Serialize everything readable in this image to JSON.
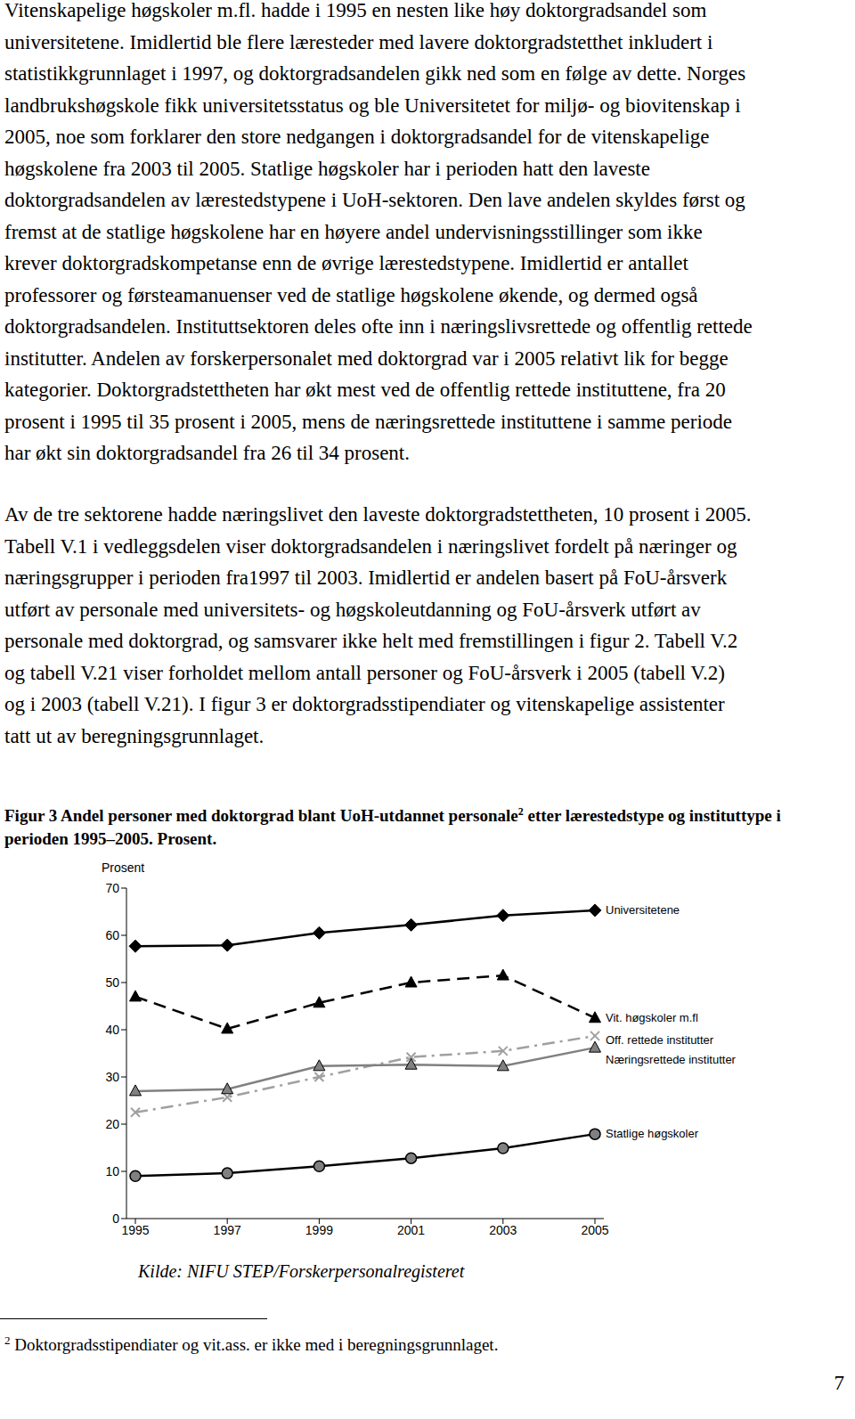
{
  "paragraphs": [
    [
      "Vitenskapelige høgskoler m.fl. hadde i 1995 en nesten like høy doktorgradsandel som",
      "universitetene. Imidlertid ble flere læresteder med lavere doktorgradstetthet inkludert i",
      "statistikkgrunnlaget i 1997, og doktorgradsandelen gikk ned som en følge av dette. Norges",
      "landbrukshøgskole fikk universitetsstatus og ble Universitetet for miljø- og biovitenskap i",
      "2005, noe som forklarer den store nedgangen i doktorgradsandel for de vitenskapelige",
      "høgskolene fra 2003 til 2005. Statlige høgskoler har i perioden hatt den laveste",
      "doktorgradsandelen av lærestedstypene i UoH-sektoren. Den lave andelen skyldes først og",
      "fremst at de statlige høgskolene har en høyere andel undervisningsstillinger som ikke",
      "krever doktorgradskompetanse enn de øvrige lærestedstypene. Imidlertid er antallet",
      "professorer og førsteamanuenser ved de statlige høgskolene økende, og dermed også",
      "doktorgradsandelen. Instituttsektoren deles ofte inn i næringslivsrettede og offentlig rettede",
      "institutter. Andelen av forskerpersonalet med doktorgrad var i 2005 relativt lik for begge",
      "kategorier. Doktorgradstettheten har økt mest ved de offentlig rettede instituttene, fra 20",
      "prosent i 1995 til 35 prosent i 2005, mens de næringsrettede instituttene i samme periode",
      "har økt sin doktorgradsandel fra 26 til 34 prosent."
    ],
    [
      "Av de tre sektorene hadde næringslivet den laveste doktorgradstettheten, 10 prosent i 2005.",
      "Tabell V.1 i vedleggsdelen viser doktorgradsandelen i næringslivet fordelt på næringer og",
      "næringsgrupper i perioden fra1997 til 2003. Imidlertid er andelen basert på FoU-årsverk",
      "utført av personale med universitets- og høgskoleutdanning og FoU-årsverk utført av",
      "personale med doktorgrad, og samsvarer ikke helt med fremstillingen i figur 2. Tabell V.2",
      "og tabell V.21 viser forholdet mellom antall personer og FoU-årsverk i 2005 (tabell V.2)",
      "og i 2003 (tabell V.21). I figur 3 er doktorgradsstipendiater og vitenskapelige assistenter",
      "tatt ut av beregningsgrunnlaget."
    ]
  ],
  "figure": {
    "title": "Figur 3 Andel personer med doktorgrad blant UoH-utdannet personale",
    "title_note": "2",
    "title_rest": "etter lærestedstype og instituttype i perioden 1995–2005. Prosent.",
    "source": "Kilde: NIFU STEP/Forskerpersonalregisteret"
  },
  "chart_data": {
    "type": "line",
    "y_label": "Prosent",
    "categories": [
      "1995",
      "1997",
      "1999",
      "2001",
      "2003",
      "2005"
    ],
    "ylim": [
      0,
      70
    ],
    "yticks": [
      0,
      10,
      20,
      30,
      40,
      50,
      60,
      70
    ],
    "grid": false,
    "series": [
      {
        "name": "Universitetene",
        "color": "#000000",
        "marker": "diamond",
        "line_style": "solid",
        "values": [
          57.7,
          57.9,
          60.5,
          62.2,
          64.2,
          65.3
        ]
      },
      {
        "name": "Vit. høgskoler m.fl",
        "color": "#000000",
        "marker": "triangle",
        "line_style": "dashed",
        "values": [
          47,
          40.2,
          45.7,
          50,
          51.5,
          42.5
        ]
      },
      {
        "name": "Off. rettede institutter",
        "color": "#a0a0a0",
        "marker": "x",
        "line_style": "dashdot",
        "values": [
          22.5,
          25.7,
          30,
          34.2,
          35.5,
          38.7
        ]
      },
      {
        "name": "Næringsrettede institutter",
        "color": "#808080",
        "marker": "triangle",
        "line_style": "solid",
        "values": [
          27,
          27.4,
          32.3,
          32.6,
          32.3,
          36.2
        ]
      },
      {
        "name": "Statlige høgskoler",
        "color": "#000000",
        "marker": "circle",
        "line_style": "solid",
        "values": [
          9,
          9.6,
          11.1,
          12.8,
          14.9,
          17.9
        ]
      }
    ]
  },
  "footnote": {
    "mark": "2",
    "text": "Doktorgradsstipendiater og vit.ass. er ikke med i beregningsgrunnlaget."
  },
  "page_number": "7"
}
